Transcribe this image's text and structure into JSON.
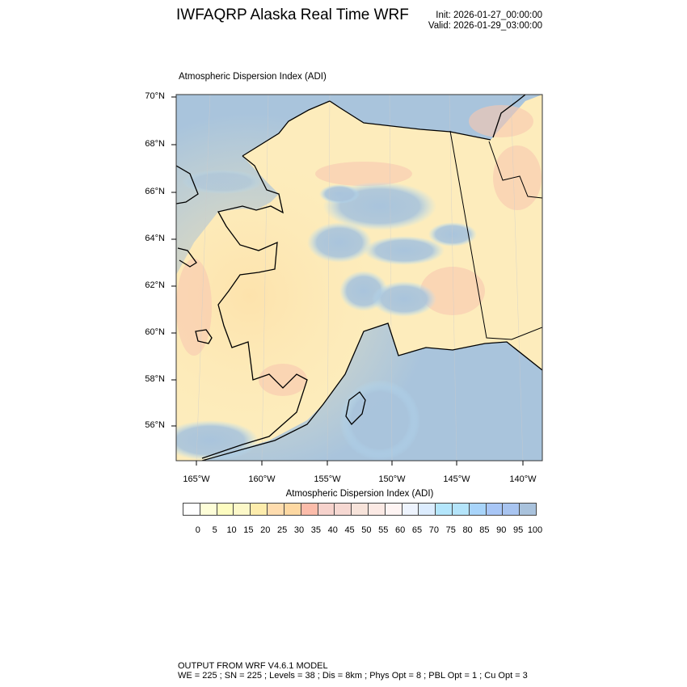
{
  "header": {
    "title": "IWFAQRP Alaska Real Time WRF",
    "init": "Init: 2026-01-27_00:00:00",
    "valid": "Valid: 2026-01-29_03:00:00"
  },
  "plot": {
    "title": "Atmospheric Dispersion Index   (ADI)",
    "lat_labels": [
      "70°N",
      "68°N",
      "66°N",
      "64°N",
      "62°N",
      "60°N",
      "58°N",
      "56°N"
    ],
    "lon_labels": [
      "165°W",
      "160°W",
      "155°W",
      "150°W",
      "145°W",
      "140°W"
    ],
    "ocean_color": "#a9c4dc",
    "coastline_color": "#000000"
  },
  "colorbar": {
    "title": "Atmospheric Dispersion Index  (ADI)",
    "labels": [
      "0",
      "5",
      "10",
      "15",
      "20",
      "25",
      "30",
      "35",
      "40",
      "45",
      "50",
      "55",
      "60",
      "65",
      "70",
      "75",
      "80",
      "85",
      "90",
      "95",
      "100"
    ],
    "colors": [
      "#ffffff",
      "#fefed8",
      "#fdfcc0",
      "#fcf8c8",
      "#fdecac",
      "#fedcae",
      "#fdd8a2",
      "#fcbcaa",
      "#f6d2cc",
      "#f6d8d2",
      "#f7e3da",
      "#fbe9e4",
      "#fef4f3",
      "#eef4fe",
      "#dcecfe",
      "#b4e6fc",
      "#b4e4fa",
      "#a8d4fa",
      "#a8c6f6",
      "#a8c4f0",
      "#a9c2dc",
      "#a9c4dc"
    ]
  },
  "footer": {
    "line1": "OUTPUT FROM WRF V4.6.1 MODEL",
    "line2": "WE = 225 ; SN = 225 ; Levels = 38 ; Dis = 8km ; Phys Opt = 8 ; PBL Opt = 1 ; Cu Opt = 3"
  }
}
